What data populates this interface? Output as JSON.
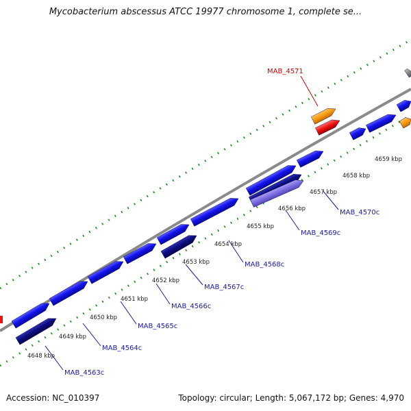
{
  "title": "Mycobacterium abscessus ATCC 19977 chromosome 1, complete se...",
  "ticks": [
    "4648 kbp",
    "4649 kbp",
    "4650 kbp",
    "4651 kbp",
    "4652 kbp",
    "4653 kbp",
    "4654 kbp",
    "4655 kbp",
    "4656 kbp",
    "4657 kbp",
    "4658 kbp",
    "4659 kbp"
  ],
  "gene_labels": [
    {
      "text": "MAB_4563c",
      "color": "#1a1aa6"
    },
    {
      "text": "MAB_4564c",
      "color": "#1a1aa6"
    },
    {
      "text": "MAB_4565c",
      "color": "#1a1aa6"
    },
    {
      "text": "MAB_4566c",
      "color": "#1a1aa6"
    },
    {
      "text": "MAB_4567c",
      "color": "#1a1aa6"
    },
    {
      "text": "MAB_4568c",
      "color": "#1a1aa6"
    },
    {
      "text": "MAB_4569c",
      "color": "#1a1aa6"
    },
    {
      "text": "MAB_4570c",
      "color": "#1a1aa6"
    },
    {
      "text": "MAB_4571",
      "color": "#d40000"
    }
  ],
  "colors": {
    "gene_blue": "#1010ee",
    "gene_navy": "#0c0c80",
    "gene_purple": "#7a6ee0",
    "gene_orange": "#f79a0d",
    "gene_red": "#ee1111",
    "backbone": "#8a8a8a",
    "dots": "#178a17",
    "tick_label": "#222222"
  },
  "footer": {
    "accession": "Accession: NC_010397",
    "info": "Topology: circular; Length: 5,067,172 bp; Genes: 4,970"
  }
}
